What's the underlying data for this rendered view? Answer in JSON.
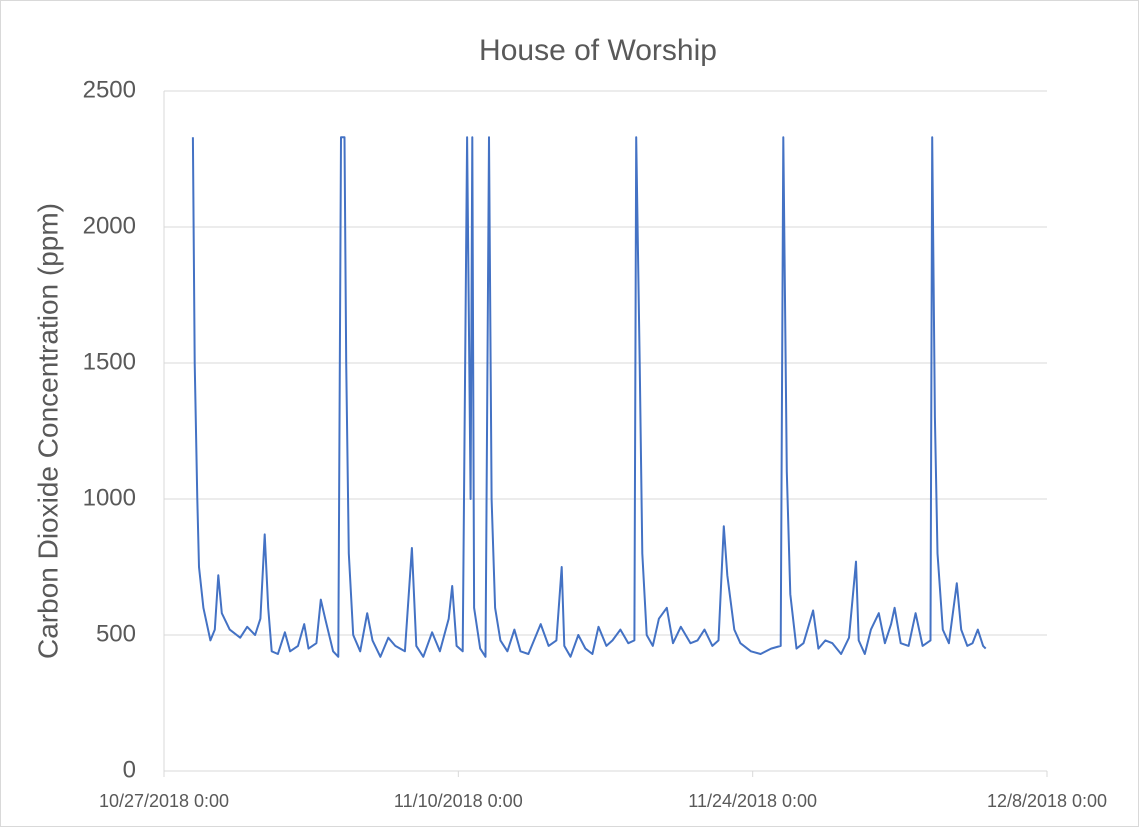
{
  "chart_data": {
    "type": "line",
    "title": "House of Worship",
    "y_label": "Carbon Dioxide Concentration (ppm)",
    "xlim": [
      "10/27/2018 0:00",
      "12/8/2018 0:00"
    ],
    "xticks": [
      "10/27/2018 0:00",
      "11/10/2018 0:00",
      "11/24/2018 0:00",
      "12/8/2018 0:00"
    ],
    "ylim": [
      0,
      2500
    ],
    "yticks": [
      0,
      500,
      1000,
      1500,
      2000,
      2500
    ],
    "grid": true,
    "x": [
      "10/28/2018 9:00",
      "10/28/2018 11:00",
      "10/28/2018 14:00",
      "10/28/2018 16:00",
      "10/28/2018 21:00",
      "10/29/2018 5:00",
      "10/29/2018 10:00",
      "10/29/2018 14:00",
      "10/29/2018 18:00",
      "10/30/2018 3:00",
      "10/30/2018 15:00",
      "10/30/2018 23:00",
      "10/31/2018 8:00",
      "10/31/2018 14:00",
      "10/31/2018 19:00",
      "10/31/2018 23:00",
      "11/1/2018 3:00",
      "11/1/2018 10:00",
      "11/1/2018 18:00",
      "11/2/2018 0:00",
      "11/2/2018 9:00",
      "11/2/2018 16:00",
      "11/2/2018 21:00",
      "11/3/2018 6:00",
      "11/3/2018 11:00",
      "11/3/2018 16:00",
      "11/4/2018 1:00",
      "11/4/2018 7:00",
      "11/4/2018 10:00",
      "11/4/2018 14:00",
      "11/4/2018 16:00",
      "11/4/2018 19:00",
      "11/5/2018 0:00",
      "11/5/2018 8:00",
      "11/5/2018 16:00",
      "11/5/2018 22:00",
      "11/6/2018 7:00",
      "11/6/2018 16:00",
      "11/7/2018 0:00",
      "11/7/2018 11:00",
      "11/7/2018 19:00",
      "11/8/2018 0:00",
      "11/8/2018 8:00",
      "11/8/2018 18:00",
      "11/9/2018 3:00",
      "11/9/2018 13:00",
      "11/9/2018 17:00",
      "11/9/2018 22:00",
      "11/10/2018 5:00",
      "11/10/2018 10:00",
      "11/10/2018 14:00",
      "11/10/2018 16:00",
      "11/10/2018 18:00",
      "11/11/2018 1:00",
      "11/11/2018 7:00",
      "11/11/2018 11:00",
      "11/11/2018 14:00",
      "11/11/2018 18:00",
      "11/12/2018 0:00",
      "11/12/2018 8:00",
      "11/12/2018 16:00",
      "11/12/2018 23:00",
      "11/13/2018 8:00",
      "11/13/2018 22:00",
      "11/14/2018 7:00",
      "11/14/2018 16:00",
      "11/14/2018 22:00",
      "11/15/2018 1:00",
      "11/15/2018 8:00",
      "11/15/2018 17:00",
      "11/16/2018 1:00",
      "11/16/2018 9:00",
      "11/16/2018 16:00",
      "11/17/2018 1:00",
      "11/17/2018 8:00",
      "11/17/2018 17:00",
      "11/18/2018 2:00",
      "11/18/2018 9:00",
      "11/18/2018 11:00",
      "11/18/2018 15:00",
      "11/18/2018 18:00",
      "11/18/2018 23:00",
      "11/19/2018 6:00",
      "11/19/2018 13:00",
      "11/19/2018 22:00",
      "11/20/2018 5:00",
      "11/20/2018 14:00",
      "11/21/2018 1:00",
      "11/21/2018 9:00",
      "11/21/2018 17:00",
      "11/22/2018 2:00",
      "11/22/2018 9:00",
      "11/22/2018 15:00",
      "11/22/2018 19:00",
      "11/23/2018 3:00",
      "11/23/2018 10:00",
      "11/23/2018 22:00",
      "11/24/2018 9:00",
      "11/24/2018 21:00",
      "11/25/2018 8:00",
      "11/25/2018 11:00",
      "11/25/2018 15:00",
      "11/25/2018 19:00",
      "11/26/2018 2:00",
      "11/26/2018 10:00",
      "11/26/2018 21:00",
      "11/27/2018 3:00",
      "11/27/2018 11:00",
      "11/27/2018 19:00",
      "11/28/2018 5:00",
      "11/28/2018 14:00",
      "11/28/2018 22:00",
      "11/29/2018 1:00",
      "11/29/2018 8:00",
      "11/29/2018 15:00",
      "11/30/2018 0:00",
      "11/30/2018 7:00",
      "11/30/2018 14:00",
      "11/30/2018 18:00",
      "12/1/2018 1:00",
      "12/1/2018 10:00",
      "12/1/2018 18:00",
      "12/2/2018 2:00",
      "12/2/2018 11:00",
      "12/2/2018 13:00",
      "12/2/2018 16:00",
      "12/2/2018 19:00",
      "12/3/2018 1:00",
      "12/3/2018 8:00",
      "12/3/2018 17:00",
      "12/3/2018 22:00",
      "12/4/2018 5:00",
      "12/4/2018 11:00",
      "12/4/2018 17:00",
      "12/4/2018 23:00",
      "12/5/2018 2:00"
    ],
    "series": [
      {
        "name": "CO2",
        "color": "#4472c4",
        "values": [
          2330,
          1500,
          1000,
          750,
          600,
          480,
          520,
          720,
          580,
          520,
          490,
          530,
          500,
          560,
          870,
          600,
          440,
          430,
          510,
          440,
          460,
          540,
          450,
          470,
          630,
          560,
          440,
          420,
          2330,
          2330,
          1500,
          800,
          500,
          440,
          580,
          480,
          420,
          490,
          460,
          440,
          820,
          460,
          420,
          510,
          440,
          560,
          680,
          460,
          440,
          2330,
          1000,
          2330,
          600,
          450,
          420,
          2330,
          1000,
          600,
          480,
          440,
          520,
          440,
          430,
          540,
          460,
          480,
          750,
          460,
          420,
          500,
          450,
          430,
          530,
          460,
          480,
          520,
          470,
          480,
          2330,
          1500,
          800,
          500,
          460,
          560,
          600,
          470,
          530,
          470,
          480,
          520,
          460,
          480,
          900,
          720,
          520,
          470,
          440,
          430,
          450,
          460,
          2330,
          1100,
          650,
          450,
          470,
          590,
          450,
          480,
          470,
          430,
          490,
          770,
          480,
          430,
          520,
          580,
          470,
          540,
          600,
          470,
          460,
          580,
          460,
          480,
          2330,
          1300,
          800,
          520,
          470,
          690,
          520,
          460,
          470,
          520,
          460,
          450
        ]
      }
    ]
  }
}
